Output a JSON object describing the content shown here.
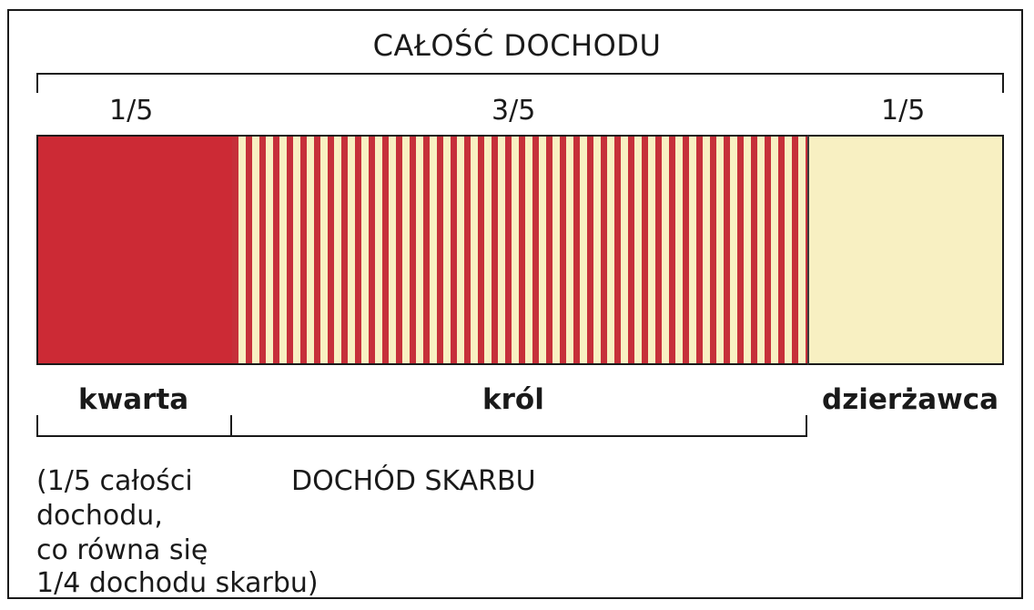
{
  "title": "CAŁOŚĆ DOCHODU",
  "segments": [
    {
      "fraction": "1/5",
      "share": 0.2,
      "label": "kwarta",
      "color": "#cc2a35",
      "fill": "solid"
    },
    {
      "fraction": "3/5",
      "share": 0.6,
      "label": "król",
      "color": "#c6303a",
      "fill": "striped"
    },
    {
      "fraction": "1/5",
      "share": 0.2,
      "label": "dzierżawca",
      "color": "#f8f0c2",
      "fill": "solid"
    }
  ],
  "kwarta_note": {
    "lines": [
      "(1/5 całości",
      "dochodu,",
      "co równa się",
      "1/4 dochodu skarbu)"
    ]
  },
  "treasury_label": "DOCHÓD SKARBU"
}
